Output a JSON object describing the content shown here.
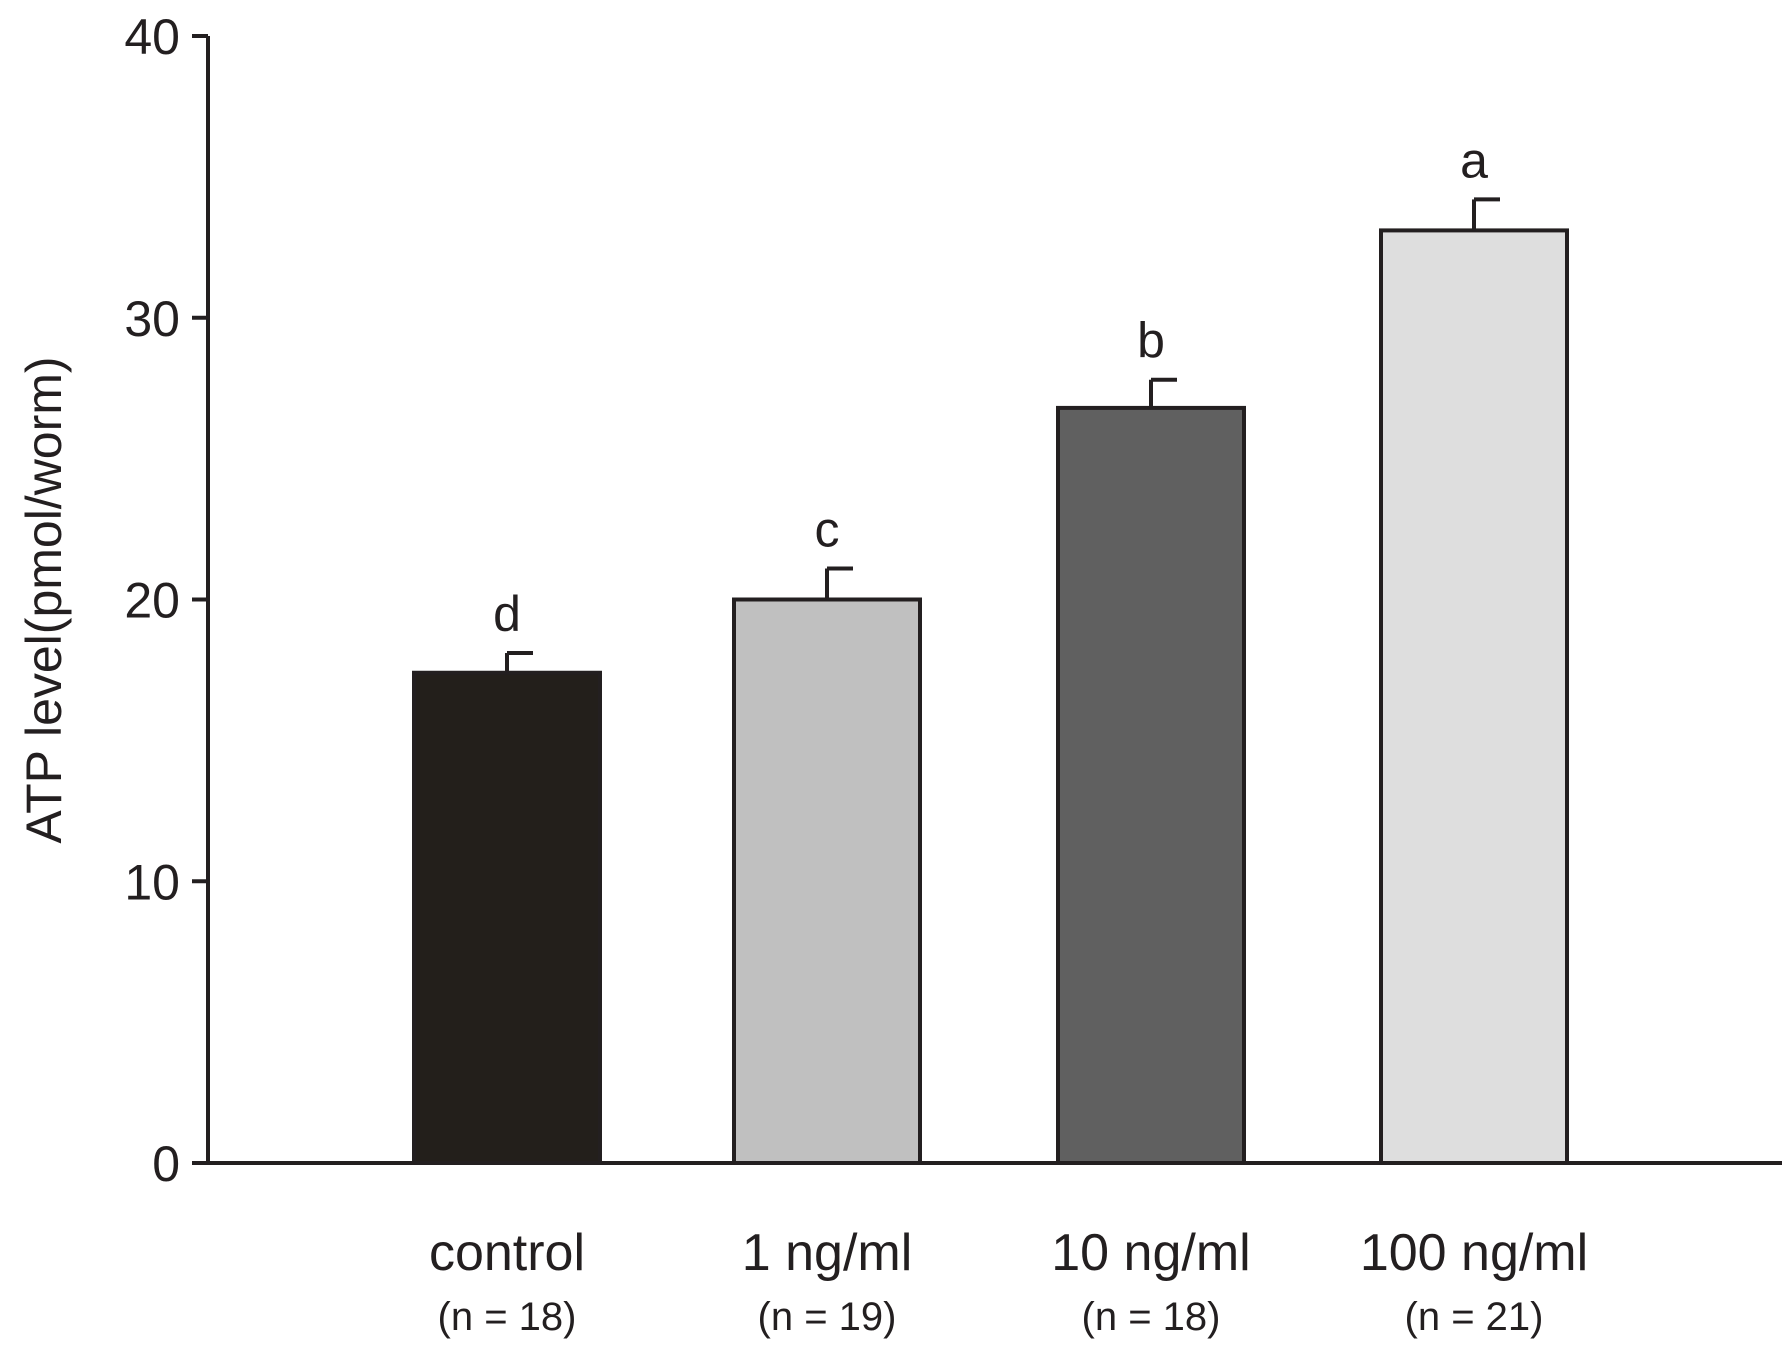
{
  "chart_data": {
    "type": "bar",
    "title": "",
    "xlabel": "",
    "ylabel": "ATP level(pmol/worm)",
    "ylim": [
      0,
      40
    ],
    "yticks": [
      0,
      10,
      20,
      30,
      40
    ],
    "categories": [
      "control",
      "1 ng/ml",
      "10 ng/ml",
      "100 ng/ml"
    ],
    "sample_sizes": [
      "(n = 18)",
      "(n = 19)",
      "(n = 18)",
      "(n = 21)"
    ],
    "values": [
      17.4,
      20.0,
      26.8,
      33.1
    ],
    "errors": [
      0.7,
      1.1,
      1.0,
      1.1
    ],
    "significance": [
      "d",
      "c",
      "b",
      "a"
    ],
    "colors": [
      "#231f1b",
      "#c0c0c0",
      "#606060",
      "#dedede"
    ],
    "axis_color": "#231f20"
  }
}
